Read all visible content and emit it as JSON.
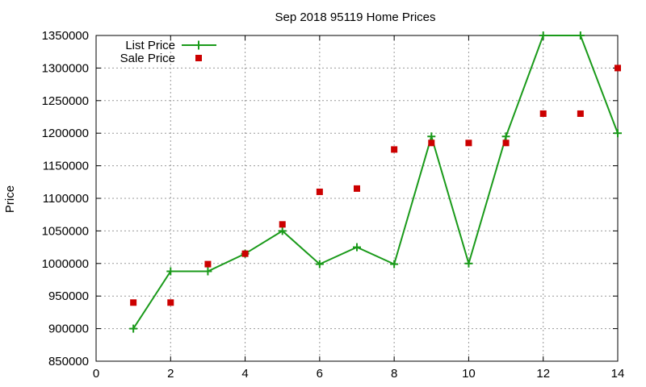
{
  "chart_data": {
    "type": "line",
    "title": "Sep 2018 95119 Home Prices",
    "xlabel": "",
    "ylabel": "Price",
    "xlim": [
      0,
      14
    ],
    "ylim": [
      850000,
      1350000
    ],
    "x_ticks": [
      0,
      2,
      4,
      6,
      8,
      10,
      12,
      14
    ],
    "y_ticks": [
      850000,
      900000,
      950000,
      1000000,
      1050000,
      1100000,
      1150000,
      1200000,
      1250000,
      1300000,
      1350000
    ],
    "grid": true,
    "legend_position": "top-left",
    "series": [
      {
        "name": "List Price",
        "style": "line-with-plus-markers",
        "color": "#1a9a1a",
        "x": [
          1,
          2,
          3,
          4,
          5,
          6,
          7,
          8,
          9,
          10,
          11,
          12,
          13,
          14
        ],
        "values": [
          900000,
          988000,
          988000,
          1015000,
          1050000,
          999000,
          1025000,
          999000,
          1195000,
          1000000,
          1195000,
          1350000,
          1350000,
          1200000
        ]
      },
      {
        "name": "Sale Price",
        "style": "square-markers",
        "color": "#cc0000",
        "x": [
          1,
          2,
          3,
          4,
          5,
          6,
          7,
          8,
          9,
          10,
          11,
          12,
          13,
          14
        ],
        "values": [
          940000,
          940000,
          999000,
          1015000,
          1060000,
          1110000,
          1115000,
          1175000,
          1185000,
          1185000,
          1185000,
          1230000,
          1230000,
          1300000
        ]
      }
    ]
  }
}
